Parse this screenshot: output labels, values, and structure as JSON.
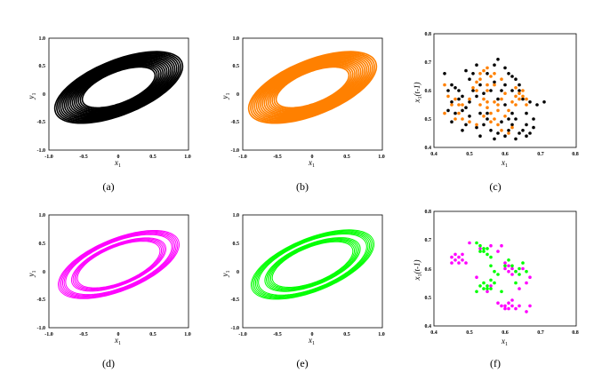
{
  "colors": {
    "a": "#000000",
    "b": "#ff8000",
    "d": "#ff00ff",
    "e": "#00ff00"
  },
  "chart_data": [
    {
      "id": "a",
      "type": "line",
      "caption": "(a)",
      "xlabel": "x",
      "xlabel_sub": "1",
      "ylabel": "y",
      "ylabel_sub": "1",
      "xlim": [
        -1.0,
        1.0
      ],
      "ylim": [
        -1.0,
        1.0
      ],
      "xticks": [
        "-1.0",
        "-0.5",
        "0",
        "0.5",
        "1.0"
      ],
      "yticks": [
        "1.0",
        "0.5",
        "0",
        "-0.5",
        "-1.0"
      ],
      "series": [
        {
          "name": "orbit",
          "color_key": "a",
          "attractor": {
            "center": [
              0.0,
              0.12
            ],
            "major": 0.78,
            "minor": 0.36,
            "angle_deg": 29,
            "radius_factors": [
              0.74,
              0.78,
              0.82,
              0.86,
              0.9,
              0.94,
              0.98,
              1.02,
              1.06,
              1.1,
              1.14,
              1.18,
              1.22,
              1.26,
              1.3
            ],
            "stroke": 1.6
          }
        }
      ]
    },
    {
      "id": "b",
      "type": "line",
      "caption": "(b)",
      "xlabel": "x",
      "xlabel_sub": "1",
      "ylabel": "y",
      "ylabel_sub": "1",
      "xlim": [
        -1.0,
        1.0
      ],
      "ylim": [
        -1.0,
        1.0
      ],
      "xticks": [
        "-1.0",
        "-0.5",
        "0",
        "0.5",
        "1.0"
      ],
      "yticks": [
        "1.0",
        "0.5",
        "0",
        "-0.5",
        "-1.0"
      ],
      "series": [
        {
          "name": "orbit",
          "color_key": "b",
          "attractor": {
            "center": [
              0.0,
              0.12
            ],
            "major": 0.78,
            "minor": 0.36,
            "angle_deg": 29,
            "radius_factors": [
              0.74,
              0.78,
              0.82,
              0.86,
              0.9,
              0.94,
              0.98,
              1.02,
              1.06,
              1.1,
              1.14,
              1.18,
              1.22,
              1.26,
              1.3
            ],
            "stroke": 1.6
          }
        }
      ]
    },
    {
      "id": "c",
      "type": "scatter",
      "caption": "(c)",
      "xlabel": "x",
      "xlabel_sub": "1",
      "ylabel": "x",
      "ylabel_sub": "1",
      "ylabel_suffix": "(t-1)",
      "xlim": [
        0.4,
        0.8
      ],
      "ylim": [
        0.4,
        0.8
      ],
      "xticks": [
        "0.4",
        "0.5",
        "0.6",
        "0.7",
        "0.8"
      ],
      "yticks": [
        "0.8",
        "0.7",
        "0.6",
        "0.5",
        "0.4"
      ],
      "series": [
        {
          "name": "black",
          "color_key": "a",
          "points": [
            [
              0.43,
              0.66
            ],
            [
              0.45,
              0.62
            ],
            [
              0.44,
              0.6
            ],
            [
              0.46,
              0.61
            ],
            [
              0.47,
              0.6
            ],
            [
              0.48,
              0.58
            ],
            [
              0.47,
              0.57
            ],
            [
              0.45,
              0.56
            ],
            [
              0.44,
              0.53
            ],
            [
              0.46,
              0.52
            ],
            [
              0.48,
              0.53
            ],
            [
              0.5,
              0.51
            ],
            [
              0.51,
              0.6
            ],
            [
              0.52,
              0.58
            ],
            [
              0.5,
              0.56
            ],
            [
              0.49,
              0.54
            ],
            [
              0.53,
              0.52
            ],
            [
              0.55,
              0.5
            ],
            [
              0.54,
              0.48
            ],
            [
              0.52,
              0.47
            ],
            [
              0.56,
              0.46
            ],
            [
              0.58,
              0.45
            ],
            [
              0.57,
              0.43
            ],
            [
              0.6,
              0.44
            ],
            [
              0.61,
              0.46
            ],
            [
              0.62,
              0.48
            ],
            [
              0.63,
              0.5
            ],
            [
              0.62,
              0.52
            ],
            [
              0.6,
              0.55
            ],
            [
              0.58,
              0.57
            ],
            [
              0.59,
              0.6
            ],
            [
              0.57,
              0.63
            ],
            [
              0.55,
              0.66
            ],
            [
              0.57,
              0.69
            ],
            [
              0.58,
              0.71
            ],
            [
              0.6,
              0.68
            ],
            [
              0.61,
              0.66
            ],
            [
              0.63,
              0.64
            ],
            [
              0.64,
              0.62
            ],
            [
              0.62,
              0.6
            ],
            [
              0.65,
              0.57
            ],
            [
              0.67,
              0.56
            ],
            [
              0.69,
              0.55
            ],
            [
              0.71,
              0.56
            ],
            [
              0.68,
              0.5
            ],
            [
              0.66,
              0.48
            ],
            [
              0.65,
              0.46
            ],
            [
              0.67,
              0.45
            ],
            [
              0.68,
              0.47
            ],
            [
              0.66,
              0.44
            ],
            [
              0.64,
              0.45
            ],
            [
              0.63,
              0.43
            ],
            [
              0.54,
              0.59
            ],
            [
              0.53,
              0.62
            ],
            [
              0.5,
              0.64
            ],
            [
              0.49,
              0.67
            ],
            [
              0.51,
              0.66
            ],
            [
              0.52,
              0.69
            ],
            [
              0.45,
              0.49
            ],
            [
              0.49,
              0.48
            ],
            [
              0.55,
              0.52
            ],
            [
              0.59,
              0.49
            ],
            [
              0.61,
              0.5
            ],
            [
              0.6,
              0.62
            ],
            [
              0.56,
              0.6
            ],
            [
              0.62,
              0.65
            ],
            [
              0.64,
              0.6
            ],
            [
              0.66,
              0.52
            ],
            [
              0.48,
              0.46
            ],
            [
              0.53,
              0.44
            ]
          ]
        },
        {
          "name": "orange",
          "color_key": "b",
          "points": [
            [
              0.43,
              0.62
            ],
            [
              0.44,
              0.58
            ],
            [
              0.45,
              0.55
            ],
            [
              0.43,
              0.52
            ],
            [
              0.46,
              0.5
            ],
            [
              0.48,
              0.55
            ],
            [
              0.5,
              0.57
            ],
            [
              0.52,
              0.6
            ],
            [
              0.53,
              0.64
            ],
            [
              0.54,
              0.67
            ],
            [
              0.55,
              0.68
            ],
            [
              0.53,
              0.66
            ],
            [
              0.56,
              0.65
            ],
            [
              0.57,
              0.62
            ],
            [
              0.55,
              0.6
            ],
            [
              0.54,
              0.57
            ],
            [
              0.55,
              0.54
            ],
            [
              0.56,
              0.52
            ],
            [
              0.57,
              0.5
            ],
            [
              0.58,
              0.48
            ],
            [
              0.56,
              0.49
            ],
            [
              0.54,
              0.51
            ],
            [
              0.58,
              0.53
            ],
            [
              0.6,
              0.51
            ],
            [
              0.61,
              0.53
            ],
            [
              0.62,
              0.56
            ],
            [
              0.63,
              0.58
            ],
            [
              0.64,
              0.59
            ],
            [
              0.65,
              0.58
            ],
            [
              0.66,
              0.57
            ],
            [
              0.64,
              0.57
            ],
            [
              0.65,
              0.6
            ],
            [
              0.63,
              0.61
            ],
            [
              0.6,
              0.59
            ],
            [
              0.59,
              0.57
            ],
            [
              0.58,
              0.55
            ],
            [
              0.57,
              0.56
            ],
            [
              0.52,
              0.48
            ],
            [
              0.5,
              0.49
            ],
            [
              0.48,
              0.5
            ],
            [
              0.47,
              0.52
            ],
            [
              0.59,
              0.46
            ],
            [
              0.61,
              0.45
            ],
            [
              0.62,
              0.47
            ],
            [
              0.55,
              0.62
            ],
            [
              0.52,
              0.63
            ],
            [
              0.51,
              0.61
            ],
            [
              0.47,
              0.55
            ],
            [
              0.46,
              0.57
            ],
            [
              0.63,
              0.55
            ],
            [
              0.57,
              0.66
            ],
            [
              0.59,
              0.64
            ],
            [
              0.53,
              0.55
            ],
            [
              0.66,
              0.55
            ],
            [
              0.55,
              0.56
            ]
          ]
        }
      ]
    },
    {
      "id": "d",
      "type": "line",
      "caption": "(d)",
      "xlabel": "x",
      "xlabel_sub": "1",
      "ylabel": "y",
      "ylabel_sub": "1",
      "xlim": [
        -1.0,
        1.0
      ],
      "ylim": [
        -1.0,
        1.0
      ],
      "xticks": [
        "-1.0",
        "-0.5",
        "0",
        "0.5",
        "1.0"
      ],
      "yticks": [
        "1.0",
        "0.5",
        "0",
        "-0.5",
        "-1.0"
      ],
      "series": [
        {
          "name": "orbit",
          "color_key": "d",
          "attractor": {
            "center": [
              0.0,
              0.12
            ],
            "major": 0.78,
            "minor": 0.36,
            "angle_deg": 29,
            "radius_factors": [
              0.84,
              0.87,
              0.9,
              0.93,
              0.96,
              1.08,
              1.11,
              1.14,
              1.17,
              1.2,
              1.23
            ],
            "stroke": 1.0
          }
        }
      ]
    },
    {
      "id": "e",
      "type": "line",
      "caption": "(e)",
      "xlabel": "x",
      "xlabel_sub": "1",
      "ylabel": "y",
      "ylabel_sub": "1",
      "xlim": [
        -1.0,
        1.0
      ],
      "ylim": [
        -1.0,
        1.0
      ],
      "xticks": [
        "-1.0",
        "-0.5",
        "0",
        "0.5",
        "1.0"
      ],
      "yticks": [
        "1.0",
        "0.5",
        "0",
        "-0.5",
        "-1.0"
      ],
      "series": [
        {
          "name": "orbit",
          "color_key": "e",
          "attractor": {
            "center": [
              0.0,
              0.12
            ],
            "major": 0.78,
            "minor": 0.36,
            "angle_deg": 29,
            "radius_factors": [
              0.82,
              0.85,
              0.88,
              0.91,
              0.94,
              0.97,
              1.1,
              1.13,
              1.16,
              1.19,
              1.22,
              1.25
            ],
            "stroke": 1.0
          }
        }
      ]
    },
    {
      "id": "f",
      "type": "scatter",
      "caption": "(f)",
      "xlabel": "x",
      "xlabel_sub": "1",
      "ylabel": "x",
      "ylabel_sub": "1",
      "ylabel_suffix": "(t-1)",
      "xlim": [
        0.4,
        0.8
      ],
      "ylim": [
        0.4,
        0.8
      ],
      "xticks": [
        "0.4",
        "0.5",
        "0.6",
        "0.7",
        "0.8"
      ],
      "yticks": [
        "0.8",
        "0.7",
        "0.6",
        "0.5",
        "0.4"
      ],
      "series": [
        {
          "name": "magenta",
          "color_key": "d",
          "points": [
            [
              0.45,
              0.64
            ],
            [
              0.46,
              0.63
            ],
            [
              0.47,
              0.62
            ],
            [
              0.46,
              0.65
            ],
            [
              0.47,
              0.64
            ],
            [
              0.48,
              0.63
            ],
            [
              0.45,
              0.62
            ],
            [
              0.48,
              0.65
            ],
            [
              0.5,
              0.69
            ],
            [
              0.53,
              0.67
            ],
            [
              0.56,
              0.68
            ],
            [
              0.58,
              0.66
            ],
            [
              0.59,
              0.68
            ],
            [
              0.6,
              0.62
            ],
            [
              0.61,
              0.61
            ],
            [
              0.62,
              0.6
            ],
            [
              0.6,
              0.6
            ],
            [
              0.62,
              0.58
            ],
            [
              0.63,
              0.59
            ],
            [
              0.61,
              0.59
            ],
            [
              0.6,
              0.47
            ],
            [
              0.61,
              0.46
            ],
            [
              0.62,
              0.47
            ],
            [
              0.63,
              0.46
            ],
            [
              0.61,
              0.48
            ],
            [
              0.6,
              0.46
            ],
            [
              0.62,
              0.49
            ],
            [
              0.58,
              0.48
            ],
            [
              0.59,
              0.47
            ],
            [
              0.64,
              0.47
            ],
            [
              0.66,
              0.45
            ],
            [
              0.67,
              0.47
            ],
            [
              0.55,
              0.52
            ],
            [
              0.56,
              0.54
            ],
            [
              0.64,
              0.53
            ],
            [
              0.66,
              0.55
            ],
            [
              0.67,
              0.57
            ],
            [
              0.49,
              0.62
            ],
            [
              0.52,
              0.57
            ],
            [
              0.65,
              0.6
            ]
          ]
        },
        {
          "name": "green",
          "color_key": "e",
          "points": [
            [
              0.52,
              0.69
            ],
            [
              0.53,
              0.66
            ],
            [
              0.54,
              0.67
            ],
            [
              0.55,
              0.65
            ],
            [
              0.54,
              0.66
            ],
            [
              0.55,
              0.67
            ],
            [
              0.56,
              0.64
            ],
            [
              0.53,
              0.68
            ],
            [
              0.54,
              0.55
            ],
            [
              0.55,
              0.54
            ],
            [
              0.56,
              0.56
            ],
            [
              0.55,
              0.53
            ],
            [
              0.56,
              0.53
            ],
            [
              0.57,
              0.55
            ],
            [
              0.54,
              0.53
            ],
            [
              0.53,
              0.54
            ],
            [
              0.6,
              0.61
            ],
            [
              0.62,
              0.61
            ],
            [
              0.63,
              0.59
            ],
            [
              0.64,
              0.6
            ],
            [
              0.65,
              0.62
            ],
            [
              0.66,
              0.59
            ],
            [
              0.64,
              0.58
            ],
            [
              0.63,
              0.55
            ],
            [
              0.61,
              0.63
            ],
            [
              0.58,
              0.58
            ],
            [
              0.59,
              0.52
            ],
            [
              0.52,
              0.52
            ],
            [
              0.56,
              0.61
            ],
            [
              0.57,
              0.59
            ]
          ]
        }
      ]
    }
  ]
}
